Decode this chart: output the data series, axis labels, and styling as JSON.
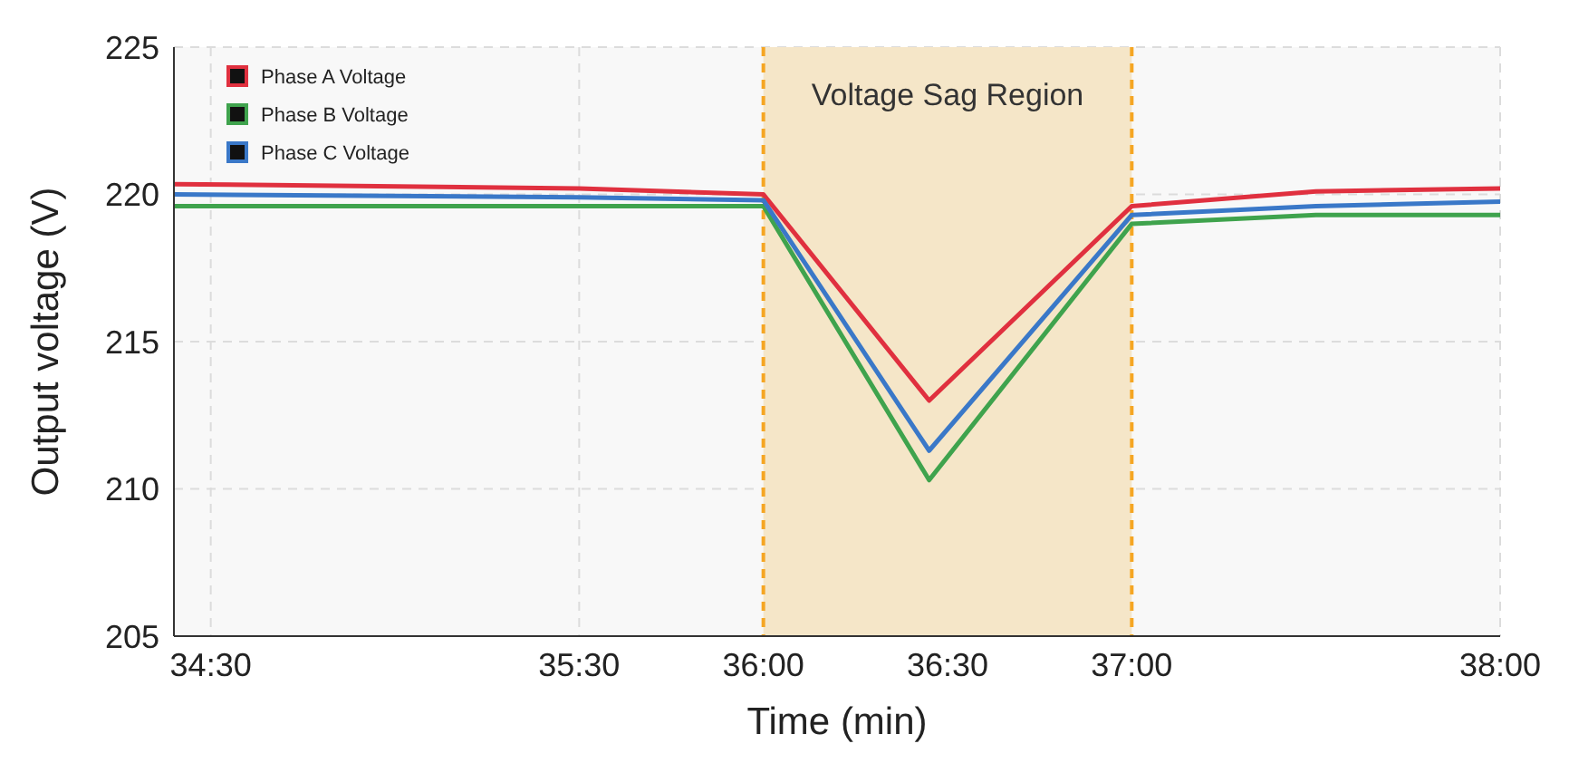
{
  "chart_data": {
    "type": "line",
    "xlabel": "Time (min)",
    "ylabel": "Output voltage (V)",
    "x": [
      34.4,
      35.5,
      36,
      36.45,
      37,
      37.5,
      38
    ],
    "series": [
      {
        "name": "Phase A Voltage",
        "color": "#e0303f",
        "values": [
          220.35,
          220.2,
          220.0,
          213.0,
          219.6,
          220.1,
          220.2
        ]
      },
      {
        "name": "Phase B Voltage",
        "color": "#3fa34d",
        "values": [
          219.6,
          219.6,
          219.6,
          210.3,
          219.0,
          219.3,
          219.3
        ]
      },
      {
        "name": "Phase C Voltage",
        "color": "#3a78c8",
        "values": [
          220.0,
          219.9,
          219.8,
          211.3,
          219.3,
          219.6,
          219.75
        ]
      }
    ],
    "xlim": [
      34.4,
      38
    ],
    "ylim": [
      205,
      225
    ],
    "yticks": [
      205,
      210,
      215,
      220,
      225
    ],
    "xticks": [
      {
        "value": 34.5,
        "label": "34:30"
      },
      {
        "value": 35.5,
        "label": "35:30"
      },
      {
        "value": 36,
        "label": "36:00"
      },
      {
        "value": 36.5,
        "label": "36:30"
      },
      {
        "value": 37,
        "label": "37:00"
      },
      {
        "value": 38,
        "label": "38:00"
      }
    ],
    "bands": [
      {
        "axis": "x",
        "from": 36,
        "to": 37,
        "label": "Voltage Sag Region",
        "color": "#f5e6c8"
      }
    ],
    "grid": true,
    "legend": "top left",
    "marker": "none",
    "line_style": "solid"
  }
}
